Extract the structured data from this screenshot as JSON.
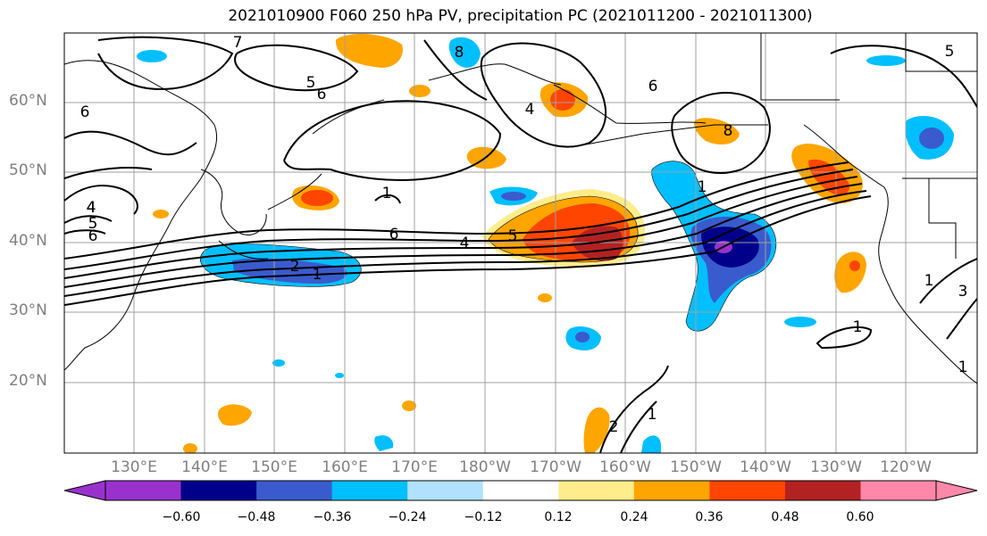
{
  "title": "2021010900 F060 250 hPa PV, precipitation PC (2021011200 - 2021011300)",
  "lat_labels": [
    "60°N",
    "50°N",
    "40°N",
    "30°N",
    "20°N"
  ],
  "lon_labels": [
    "130°E",
    "140°E",
    "150°E",
    "160°E",
    "170°E",
    "180°W",
    "170°W",
    "160°W",
    "150°W",
    "140°W",
    "130°W",
    "120°W"
  ],
  "colorbar": {
    "ticks": [
      "−0.60",
      "−0.48",
      "−0.36",
      "−0.24",
      "−0.12",
      "0.12",
      "0.24",
      "0.36",
      "0.48",
      "0.60"
    ],
    "colors": [
      "#9932cc",
      "#00008b",
      "#3a5bcd",
      "#00bfff",
      "#b0e2ff",
      "#ffffff",
      "#ffec8b",
      "#ffa500",
      "#ff4500",
      "#b22222",
      "#ff88aa"
    ]
  },
  "contour_labels": [
    "7",
    "5",
    "8",
    "6",
    "6",
    "4",
    "6",
    "8",
    "1",
    "6",
    "4",
    "5",
    "4",
    "2",
    "1",
    "1",
    "4",
    "5",
    "6",
    "5",
    "1",
    "2",
    "1",
    "3",
    "1",
    "1"
  ]
}
